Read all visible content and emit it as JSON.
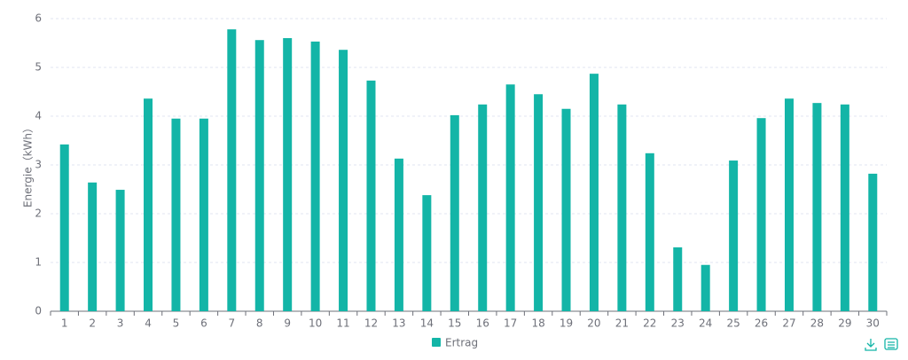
{
  "chart_data": {
    "type": "bar",
    "y_label": "Energie（kWh）",
    "categories": [
      "1",
      "2",
      "3",
      "4",
      "5",
      "6",
      "7",
      "8",
      "9",
      "10",
      "11",
      "12",
      "13",
      "14",
      "15",
      "16",
      "17",
      "18",
      "19",
      "20",
      "21",
      "22",
      "23",
      "24",
      "25",
      "26",
      "27",
      "28",
      "29",
      "30"
    ],
    "series": [
      {
        "name": "Ertrag",
        "color": "#13b5a7",
        "values": [
          3.42,
          2.64,
          2.49,
          4.36,
          3.95,
          3.95,
          5.78,
          5.56,
          5.6,
          5.53,
          5.36,
          4.73,
          3.13,
          2.38,
          4.02,
          4.24,
          4.65,
          4.45,
          4.15,
          4.87,
          4.24,
          3.24,
          1.31,
          0.95,
          3.09,
          3.96,
          4.36,
          4.27,
          4.24,
          2.82
        ]
      }
    ],
    "ylim": [
      0,
      6
    ],
    "yticks": [
      0,
      1,
      2,
      3,
      4,
      5,
      6
    ],
    "grid": true,
    "legend": "bottom"
  }
}
